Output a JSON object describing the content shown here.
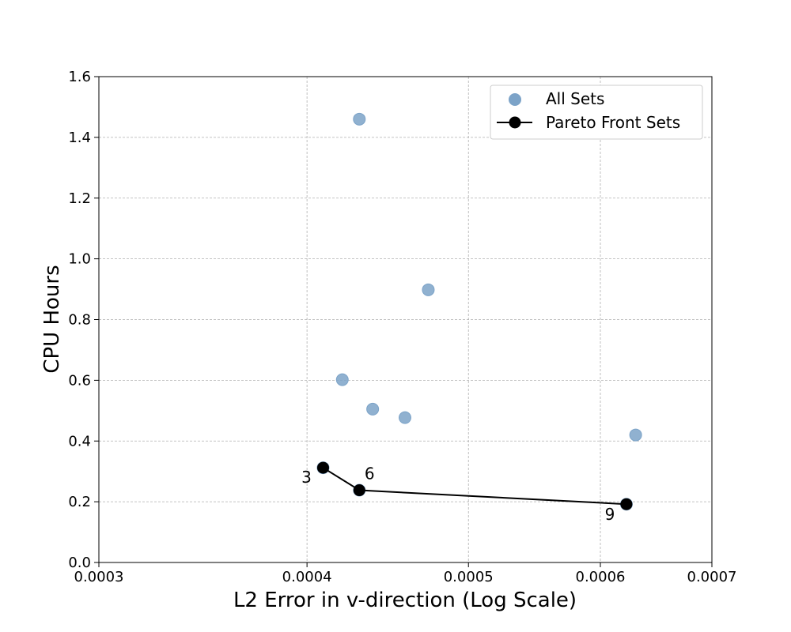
{
  "chart_data": {
    "type": "scatter",
    "title": "",
    "xlabel": "L2 Error in v-direction (Log Scale)",
    "ylabel": "CPU Hours",
    "xscale": "log",
    "xlim": [
      0.0003,
      0.0007
    ],
    "ylim": [
      0.0,
      1.6
    ],
    "xticks": [
      0.0003,
      0.0004,
      0.0005,
      0.0006,
      0.0007
    ],
    "xtick_labels": [
      "0.0003",
      "0.0004",
      "0.0005",
      "0.0006",
      "0.0007"
    ],
    "yticks": [
      0.0,
      0.2,
      0.4,
      0.6,
      0.8,
      1.0,
      1.2,
      1.4,
      1.6
    ],
    "ytick_labels": [
      "0.0",
      "0.2",
      "0.4",
      "0.6",
      "0.8",
      "1.0",
      "1.2",
      "1.4",
      "1.6"
    ],
    "grid": true,
    "legend_position": "top-right",
    "series": [
      {
        "name": "All Sets",
        "kind": "scatter",
        "color": "#7ca3c8",
        "points": [
          {
            "x": 0.00043,
            "y": 1.46
          },
          {
            "x": 0.000473,
            "y": 0.898
          },
          {
            "x": 0.00042,
            "y": 0.602
          },
          {
            "x": 0.000438,
            "y": 0.505
          },
          {
            "x": 0.000458,
            "y": 0.477
          },
          {
            "x": 0.00063,
            "y": 0.42
          },
          {
            "x": 0.000409,
            "y": 0.312
          },
          {
            "x": 0.00043,
            "y": 0.238
          },
          {
            "x": 0.000622,
            "y": 0.192
          }
        ]
      },
      {
        "name": "Pareto Front Sets",
        "kind": "line-marker",
        "color": "#000000",
        "points": [
          {
            "x": 0.000409,
            "y": 0.312,
            "label": "3"
          },
          {
            "x": 0.00043,
            "y": 0.238,
            "label": "6"
          },
          {
            "x": 0.000622,
            "y": 0.192,
            "label": "9"
          }
        ]
      }
    ]
  }
}
